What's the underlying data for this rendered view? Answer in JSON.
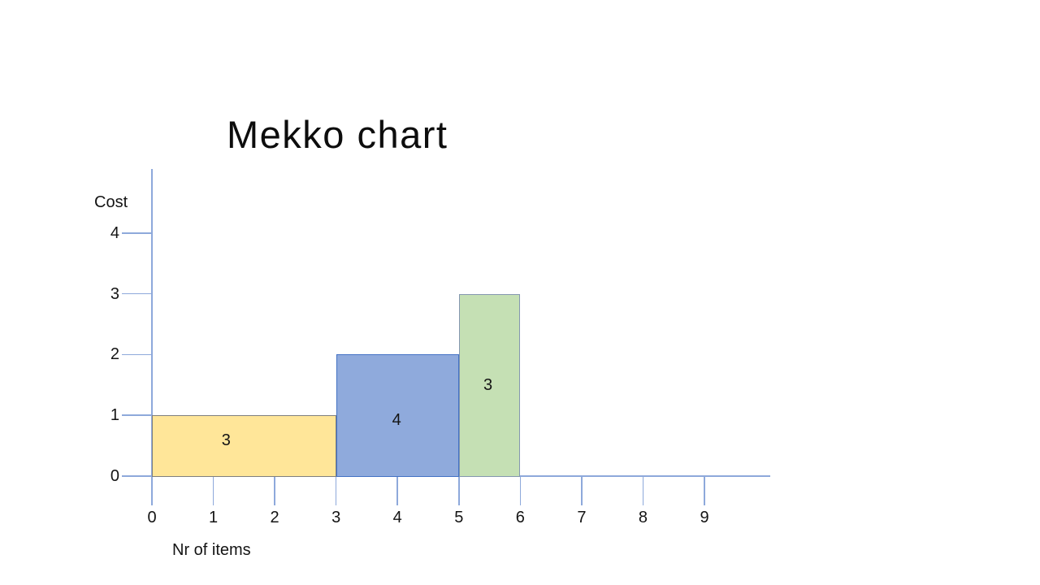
{
  "page": {
    "background": "#FFFFFF"
  },
  "title": {
    "text": "Mekko chart"
  },
  "chart_data": {
    "type": "bar",
    "variant": "mekko-variable-width-bars",
    "title": "Mekko chart",
    "xlabel": "Nr of items",
    "ylabel": "Cost",
    "xlim": [
      0,
      10
    ],
    "ylim": [
      0,
      4
    ],
    "x_ticks": [
      0,
      1,
      2,
      3,
      4,
      5,
      6,
      7,
      8,
      9
    ],
    "y_ticks": [
      0,
      1,
      2,
      3,
      4
    ],
    "grid": false,
    "legend": false,
    "axis_color": "#8EA9DB",
    "text_color": "#141414",
    "bars": [
      {
        "name": "segment-1",
        "x_start": 0,
        "x_end": 3,
        "width_items": 3,
        "cost": 1,
        "value_label": "3",
        "fill": "#FFE699",
        "border": "#7F7F7F",
        "label_dx": -22,
        "label_dy": -7
      },
      {
        "name": "segment-2",
        "x_start": 3,
        "x_end": 5,
        "width_items": 2,
        "cost": 2,
        "value_label": "4",
        "fill": "#8FAADC",
        "border": "#4472C4",
        "label_dx": -1,
        "label_dy": 6
      },
      {
        "name": "segment-3",
        "x_start": 5,
        "x_end": 6,
        "width_items": 1,
        "cost": 3,
        "value_label": "3",
        "fill": "#C5E0B4",
        "border": "#8497B0",
        "label_dx": -2,
        "label_dy": 0
      }
    ]
  }
}
